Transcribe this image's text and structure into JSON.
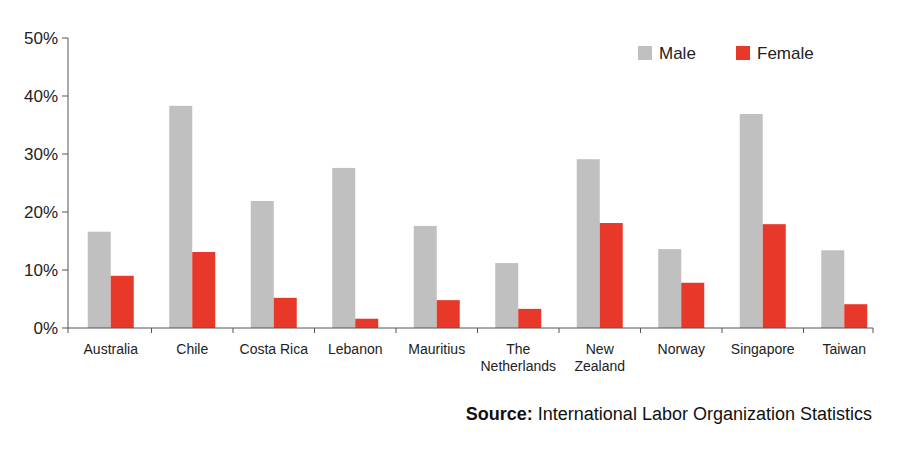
{
  "chart_data": {
    "type": "bar",
    "categories": [
      "Australia",
      "Chile",
      "Costa Rica",
      "Lebanon",
      "Mauritius",
      "The\nNetherlands",
      "New\nZealand",
      "Norway",
      "Singapore",
      "Taiwan"
    ],
    "series": [
      {
        "name": "Male",
        "color": "#c0c0c0",
        "values": [
          16.6,
          38.3,
          21.9,
          27.6,
          17.6,
          11.2,
          29.1,
          13.6,
          36.9,
          13.4
        ]
      },
      {
        "name": "Female",
        "color": "#e8382a",
        "values": [
          9.0,
          13.1,
          5.2,
          1.6,
          4.8,
          3.3,
          18.1,
          7.8,
          17.9,
          4.1
        ]
      }
    ],
    "ylim": [
      0,
      50
    ],
    "yticks": [
      {
        "value": 0,
        "label": "0%"
      },
      {
        "value": 10,
        "label": "10%"
      },
      {
        "value": 20,
        "label": "20%"
      },
      {
        "value": 30,
        "label": "30%"
      },
      {
        "value": 40,
        "label": "40%"
      },
      {
        "value": 50,
        "label": "50%"
      }
    ],
    "grid": false,
    "legend": "top-right",
    "source": {
      "label": "Source:",
      "text": "International Labor Organization Statistics"
    }
  }
}
